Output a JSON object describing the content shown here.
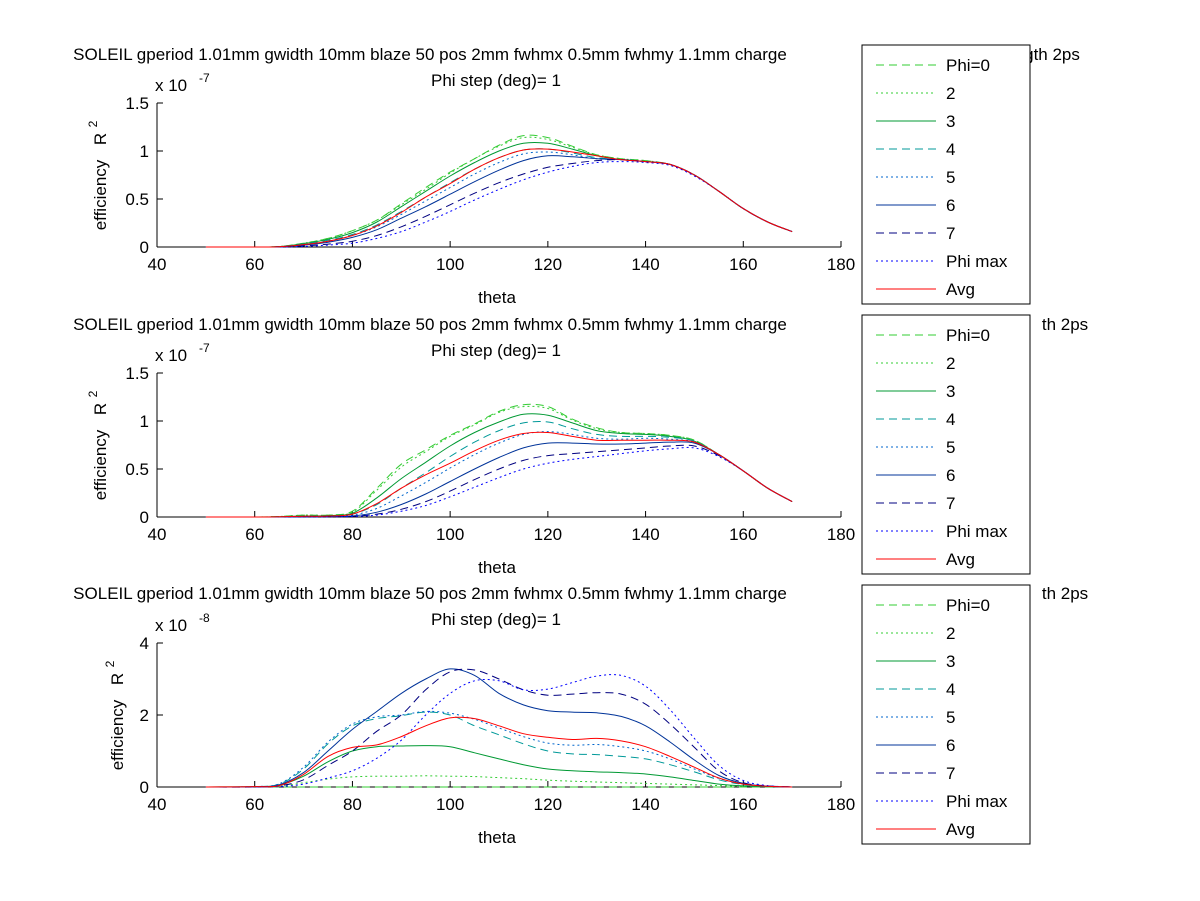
{
  "figure": {
    "background": "#ffffff"
  },
  "legend": {
    "entries": [
      {
        "label": "Phi=0",
        "color": "#33cc33",
        "dash": "dashed"
      },
      {
        "label": "2",
        "color": "#33cc33",
        "dash": "dotted"
      },
      {
        "label": "3",
        "color": "#009933",
        "dash": "solid"
      },
      {
        "label": "4",
        "color": "#009999",
        "dash": "dashed"
      },
      {
        "label": "5",
        "color": "#0066cc",
        "dash": "dotted"
      },
      {
        "label": "6",
        "color": "#003399",
        "dash": "solid"
      },
      {
        "label": "7",
        "color": "#000080",
        "dash": "dashed"
      },
      {
        "label": "Phi max",
        "color": "#0000ff",
        "dash": "dotted"
      },
      {
        "label": "Avg",
        "color": "#ff0000",
        "dash": "solid"
      }
    ]
  },
  "chart_data": [
    {
      "type": "line",
      "title": "SOLEIL gperiod 1.01mm gwidth 10mm blaze 50 pos 2mm fwhmx 0.5mm fwhmy 1.1mm charge",
      "title_tail": "gth 2ps",
      "subtitle": "Phi step (deg)= 1",
      "xlabel": "theta",
      "ylabel": "efficiency",
      "ylabel_suffix": "R",
      "ylabel_sup": "2",
      "exponent": "x 10",
      "exponent_sup": "-7",
      "xlim": [
        40,
        180
      ],
      "ylim": [
        0,
        1.5
      ],
      "xticks": [
        "40",
        "60",
        "80",
        "100",
        "120",
        "140",
        "160",
        "180"
      ],
      "yticks": [
        "0",
        "0.5",
        "1",
        "1.5"
      ],
      "x": [
        50,
        60,
        65,
        70,
        75,
        80,
        85,
        90,
        95,
        100,
        105,
        110,
        115,
        120,
        125,
        130,
        135,
        140,
        145,
        150,
        155,
        160,
        165,
        170
      ],
      "series": [
        {
          "name": "Phi=0",
          "values": [
            0,
            0,
            0.005,
            0.04,
            0.09,
            0.17,
            0.28,
            0.45,
            0.62,
            0.78,
            0.92,
            1.06,
            1.16,
            1.14,
            1.05,
            0.96,
            0.92,
            0.9,
            0.86,
            0.75,
            0.58,
            0.4,
            0.26,
            0.16
          ]
        },
        {
          "name": "2",
          "values": [
            0,
            0,
            0.005,
            0.04,
            0.09,
            0.17,
            0.28,
            0.44,
            0.6,
            0.77,
            0.92,
            1.05,
            1.14,
            1.12,
            1.04,
            0.96,
            0.92,
            0.9,
            0.86,
            0.75,
            0.58,
            0.4,
            0.26,
            0.16
          ]
        },
        {
          "name": "3",
          "values": [
            0,
            0,
            0.004,
            0.035,
            0.08,
            0.15,
            0.26,
            0.42,
            0.58,
            0.74,
            0.88,
            1.0,
            1.08,
            1.08,
            1.02,
            0.95,
            0.91,
            0.89,
            0.86,
            0.75,
            0.58,
            0.4,
            0.26,
            0.16
          ]
        },
        {
          "name": "4",
          "values": [
            0,
            0,
            0.003,
            0.03,
            0.07,
            0.13,
            0.23,
            0.37,
            0.52,
            0.67,
            0.81,
            0.93,
            1.01,
            1.02,
            0.98,
            0.93,
            0.91,
            0.89,
            0.86,
            0.75,
            0.58,
            0.4,
            0.26,
            0.16
          ]
        },
        {
          "name": "5",
          "values": [
            0,
            0,
            0.003,
            0.025,
            0.06,
            0.12,
            0.21,
            0.34,
            0.48,
            0.62,
            0.76,
            0.88,
            0.97,
            0.99,
            0.96,
            0.92,
            0.91,
            0.89,
            0.86,
            0.75,
            0.58,
            0.4,
            0.26,
            0.16
          ]
        },
        {
          "name": "6",
          "values": [
            0,
            0,
            0.002,
            0.02,
            0.05,
            0.1,
            0.18,
            0.3,
            0.42,
            0.55,
            0.68,
            0.8,
            0.9,
            0.95,
            0.94,
            0.92,
            0.91,
            0.89,
            0.86,
            0.75,
            0.58,
            0.4,
            0.26,
            0.16
          ]
        },
        {
          "name": "7",
          "values": [
            0,
            0,
            0.001,
            0.01,
            0.03,
            0.06,
            0.12,
            0.21,
            0.32,
            0.44,
            0.56,
            0.67,
            0.76,
            0.83,
            0.87,
            0.9,
            0.91,
            0.89,
            0.86,
            0.75,
            0.58,
            0.4,
            0.26,
            0.16
          ]
        },
        {
          "name": "Phi max",
          "values": [
            0,
            0,
            0.0005,
            0.005,
            0.02,
            0.04,
            0.09,
            0.16,
            0.26,
            0.37,
            0.49,
            0.6,
            0.7,
            0.78,
            0.84,
            0.88,
            0.89,
            0.88,
            0.85,
            0.74,
            0.58,
            0.4,
            0.26,
            0.16
          ]
        },
        {
          "name": "Avg",
          "values": [
            0,
            0,
            0.003,
            0.025,
            0.06,
            0.12,
            0.22,
            0.36,
            0.52,
            0.66,
            0.81,
            0.93,
            1.01,
            1.02,
            0.99,
            0.95,
            0.91,
            0.89,
            0.86,
            0.75,
            0.58,
            0.4,
            0.26,
            0.16
          ]
        }
      ]
    },
    {
      "type": "line",
      "title": "SOLEIL gperiod 1.01mm gwidth 10mm blaze 50 pos 2mm fwhmx 0.5mm fwhmy 1.1mm charge",
      "title_tail": "th 2ps",
      "subtitle": "Phi step (deg)= 1",
      "xlabel": "theta",
      "ylabel": "efficiency",
      "ylabel_suffix": "R",
      "ylabel_sup": "2",
      "exponent": "x 10",
      "exponent_sup": "-7",
      "xlim": [
        40,
        180
      ],
      "ylim": [
        0,
        1.5
      ],
      "xticks": [
        "40",
        "60",
        "80",
        "100",
        "120",
        "140",
        "160",
        "180"
      ],
      "yticks": [
        "0",
        "0.5",
        "1",
        "1.5"
      ],
      "x": [
        50,
        60,
        65,
        70,
        75,
        80,
        85,
        90,
        95,
        100,
        105,
        110,
        115,
        120,
        125,
        130,
        135,
        140,
        145,
        150,
        155,
        160,
        165,
        170
      ],
      "series": [
        {
          "name": "Phi=0",
          "values": [
            0,
            0,
            0.005,
            0.02,
            0.02,
            0.06,
            0.3,
            0.55,
            0.7,
            0.85,
            0.97,
            1.1,
            1.17,
            1.15,
            1.02,
            0.93,
            0.88,
            0.87,
            0.85,
            0.8,
            0.65,
            0.48,
            0.3,
            0.16
          ]
        },
        {
          "name": "2",
          "values": [
            0,
            0,
            0.005,
            0.02,
            0.02,
            0.05,
            0.28,
            0.52,
            0.68,
            0.84,
            0.96,
            1.09,
            1.15,
            1.13,
            1.01,
            0.92,
            0.88,
            0.87,
            0.85,
            0.8,
            0.65,
            0.48,
            0.3,
            0.16
          ]
        },
        {
          "name": "3",
          "values": [
            0,
            0,
            0.003,
            0.01,
            0.015,
            0.04,
            0.2,
            0.4,
            0.57,
            0.74,
            0.88,
            0.99,
            1.07,
            1.06,
            0.98,
            0.9,
            0.87,
            0.86,
            0.84,
            0.79,
            0.65,
            0.48,
            0.3,
            0.16
          ]
        },
        {
          "name": "4",
          "values": [
            0,
            0,
            0.002,
            0.008,
            0.01,
            0.03,
            0.13,
            0.3,
            0.46,
            0.63,
            0.78,
            0.9,
            0.98,
            0.99,
            0.92,
            0.86,
            0.84,
            0.84,
            0.83,
            0.79,
            0.65,
            0.48,
            0.3,
            0.16
          ]
        },
        {
          "name": "5",
          "values": [
            0,
            0,
            0.001,
            0.005,
            0.008,
            0.02,
            0.09,
            0.22,
            0.36,
            0.51,
            0.65,
            0.77,
            0.86,
            0.89,
            0.86,
            0.82,
            0.81,
            0.82,
            0.81,
            0.78,
            0.65,
            0.48,
            0.3,
            0.16
          ]
        },
        {
          "name": "6",
          "values": [
            0,
            0,
            0.0005,
            0.002,
            0.005,
            0.01,
            0.05,
            0.13,
            0.24,
            0.37,
            0.5,
            0.62,
            0.72,
            0.77,
            0.77,
            0.76,
            0.76,
            0.77,
            0.78,
            0.77,
            0.65,
            0.48,
            0.3,
            0.16
          ]
        },
        {
          "name": "7",
          "values": [
            0,
            0,
            0.0003,
            0.001,
            0.003,
            0.007,
            0.03,
            0.08,
            0.16,
            0.27,
            0.39,
            0.5,
            0.59,
            0.64,
            0.66,
            0.68,
            0.7,
            0.72,
            0.74,
            0.74,
            0.64,
            0.48,
            0.3,
            0.16
          ]
        },
        {
          "name": "Phi max",
          "values": [
            0,
            0,
            0.0002,
            0.001,
            0.002,
            0.005,
            0.02,
            0.06,
            0.12,
            0.21,
            0.31,
            0.41,
            0.5,
            0.56,
            0.6,
            0.63,
            0.66,
            0.69,
            0.71,
            0.72,
            0.63,
            0.48,
            0.3,
            0.16
          ]
        },
        {
          "name": "Avg",
          "values": [
            0,
            0,
            0.002,
            0.008,
            0.01,
            0.03,
            0.14,
            0.3,
            0.44,
            0.56,
            0.69,
            0.8,
            0.87,
            0.88,
            0.84,
            0.8,
            0.8,
            0.8,
            0.8,
            0.78,
            0.65,
            0.48,
            0.3,
            0.16
          ]
        }
      ]
    },
    {
      "type": "line",
      "title": "SOLEIL gperiod 1.01mm gwidth 10mm blaze 50 pos 2mm fwhmx 0.5mm fwhmy 1.1mm charge",
      "title_tail": "th 2ps",
      "subtitle": "Phi step (deg)= 1",
      "xlabel": "theta",
      "ylabel": "efficiency",
      "ylabel_suffix": "R",
      "ylabel_sup": "2",
      "exponent": "x 10",
      "exponent_sup": "-8",
      "xlim": [
        40,
        180
      ],
      "ylim": [
        0,
        4
      ],
      "xticks": [
        "40",
        "60",
        "80",
        "100",
        "120",
        "140",
        "160",
        "180"
      ],
      "yticks": [
        "0",
        "2",
        "4"
      ],
      "x": [
        50,
        60,
        65,
        70,
        75,
        80,
        85,
        90,
        95,
        100,
        105,
        110,
        115,
        120,
        125,
        130,
        135,
        140,
        145,
        150,
        155,
        160,
        165,
        170
      ],
      "series": [
        {
          "name": "Phi=0",
          "values": [
            0,
            0,
            0,
            0,
            0,
            0,
            0,
            0,
            0,
            0,
            0,
            0,
            0,
            0,
            0,
            0,
            0,
            0,
            0,
            0,
            0,
            0,
            0,
            0
          ]
        },
        {
          "name": "2",
          "values": [
            0,
            0,
            0.02,
            0.12,
            0.22,
            0.28,
            0.3,
            0.3,
            0.31,
            0.3,
            0.29,
            0.26,
            0.23,
            0.19,
            0.16,
            0.14,
            0.12,
            0.1,
            0.08,
            0.06,
            0.04,
            0.02,
            0.01,
            0
          ]
        },
        {
          "name": "3",
          "values": [
            0,
            0.01,
            0.05,
            0.3,
            0.7,
            1.0,
            1.12,
            1.14,
            1.15,
            1.12,
            0.95,
            0.78,
            0.62,
            0.5,
            0.45,
            0.42,
            0.4,
            0.36,
            0.28,
            0.18,
            0.08,
            0.03,
            0.01,
            0
          ]
        },
        {
          "name": "4",
          "values": [
            0,
            0.01,
            0.08,
            0.5,
            1.2,
            1.7,
            1.9,
            1.98,
            2.08,
            2.0,
            1.7,
            1.45,
            1.2,
            1.0,
            0.92,
            0.9,
            0.85,
            0.78,
            0.62,
            0.42,
            0.2,
            0.07,
            0.02,
            0
          ]
        },
        {
          "name": "5",
          "values": [
            0,
            0.01,
            0.09,
            0.55,
            1.25,
            1.75,
            1.95,
            2.0,
            2.1,
            2.05,
            1.88,
            1.64,
            1.4,
            1.22,
            1.16,
            1.18,
            1.12,
            1.0,
            0.78,
            0.5,
            0.24,
            0.08,
            0.02,
            0
          ]
        },
        {
          "name": "6",
          "values": [
            0,
            0.01,
            0.06,
            0.4,
            1.0,
            1.6,
            2.1,
            2.6,
            3.0,
            3.28,
            3.1,
            2.6,
            2.28,
            2.12,
            2.08,
            2.06,
            1.96,
            1.7,
            1.25,
            0.75,
            0.32,
            0.1,
            0.02,
            0
          ]
        },
        {
          "name": "7",
          "values": [
            0,
            0,
            0.03,
            0.2,
            0.6,
            1.0,
            1.55,
            2.0,
            2.7,
            3.2,
            3.25,
            3.0,
            2.7,
            2.55,
            2.58,
            2.62,
            2.58,
            2.3,
            1.75,
            1.1,
            0.45,
            0.12,
            0.03,
            0
          ]
        },
        {
          "name": "Phi max",
          "values": [
            0,
            0,
            0.01,
            0.08,
            0.25,
            0.45,
            0.8,
            1.3,
            2.0,
            2.6,
            2.95,
            2.95,
            2.7,
            2.72,
            2.9,
            3.08,
            3.1,
            2.8,
            2.15,
            1.35,
            0.6,
            0.18,
            0.04,
            0
          ]
        },
        {
          "name": "Avg",
          "values": [
            0,
            0.01,
            0.04,
            0.35,
            0.85,
            1.1,
            1.17,
            1.4,
            1.7,
            1.92,
            1.9,
            1.7,
            1.48,
            1.38,
            1.32,
            1.35,
            1.28,
            1.12,
            0.85,
            0.55,
            0.25,
            0.08,
            0.02,
            0
          ]
        }
      ]
    }
  ]
}
